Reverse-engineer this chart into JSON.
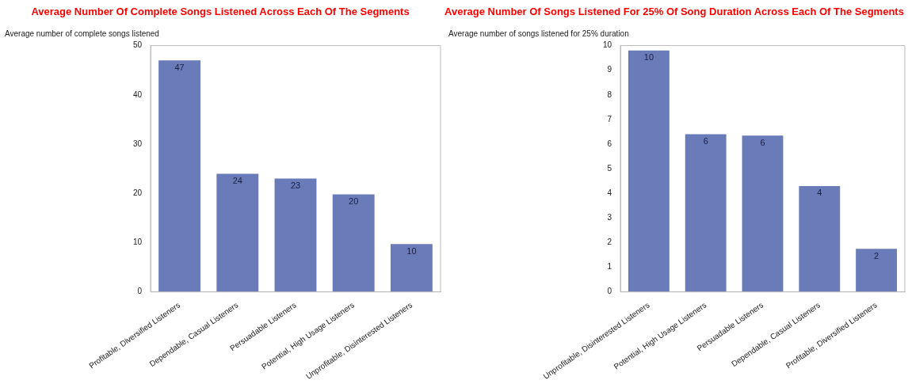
{
  "chart_data": [
    {
      "type": "bar",
      "title": "Average Number Of Complete Songs Listened Across Each Of The Segments",
      "ylabel": "Average number of complete songs listened",
      "categories": [
        "Profitable, Diversified Listeners",
        "Dependable, Casual Listeners",
        "Persuadable Listeners",
        "Potential, High Usage Listeners",
        "Unprofitable, Disinterested Listeners"
      ],
      "values": [
        47,
        24,
        23,
        19.8,
        9.7
      ],
      "value_labels": [
        "47",
        "24",
        "23",
        "20",
        "10"
      ],
      "color": "#6a7bb9",
      "ylim": [
        0,
        50
      ],
      "yticks": [
        0,
        10,
        20,
        30,
        40,
        50
      ],
      "grid": false
    },
    {
      "type": "bar",
      "title": "Average Number Of Songs Listened For 25% Of Song Duration Across Each Of The Segments",
      "ylabel": "Average number of songs listened for 25% duration",
      "categories": [
        "Unprofitable, Disinterested Listeners",
        "Potential, High Usage Listeners",
        "Persuadable Listeners",
        "Dependable, Casual Listeners",
        "Profitable, Diversified Listeners"
      ],
      "values": [
        9.8,
        6.4,
        6.35,
        4.3,
        1.75
      ],
      "value_labels": [
        "10",
        "6",
        "6",
        "4",
        "2"
      ],
      "color": "#6a7bb9",
      "ylim": [
        0,
        10
      ],
      "yticks": [
        0,
        1,
        2,
        3,
        4,
        5,
        6,
        7,
        8,
        9,
        10
      ],
      "grid": false
    }
  ]
}
